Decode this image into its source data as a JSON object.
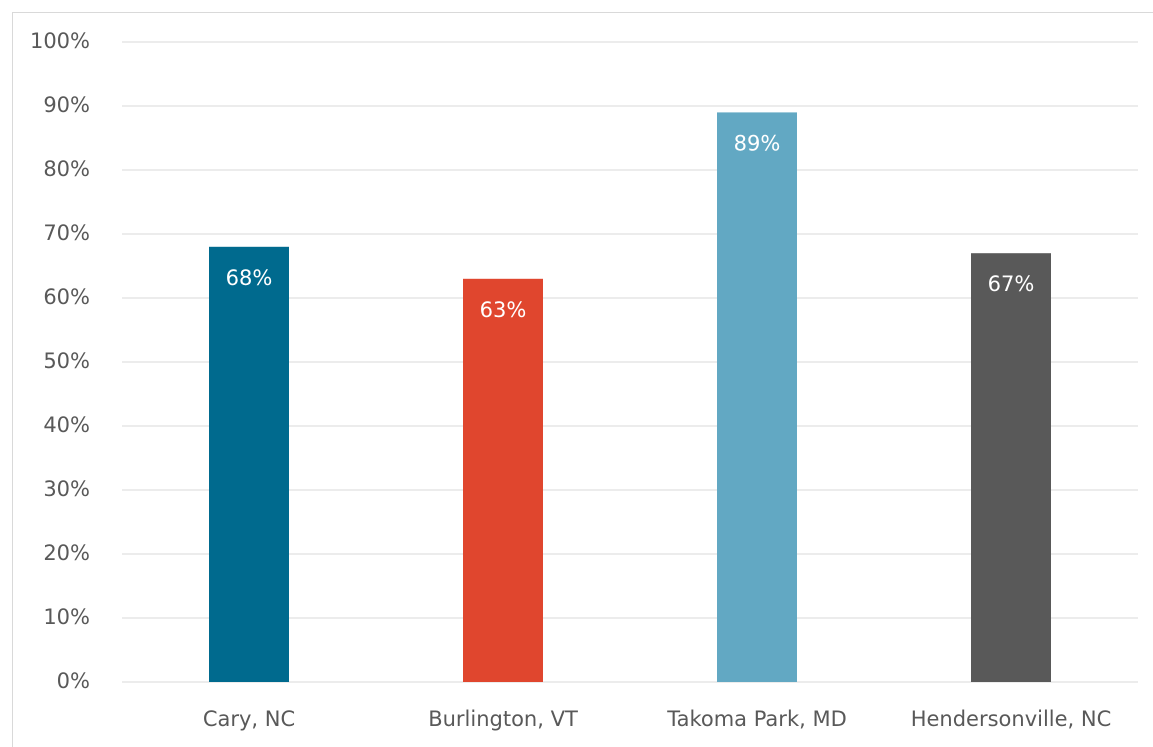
{
  "chart_data": {
    "type": "bar",
    "categories": [
      "Cary, NC",
      "Burlington, VT",
      "Takoma Park, MD",
      "Hendersonville, NC"
    ],
    "values": [
      68,
      63,
      89,
      67
    ],
    "value_labels": [
      "68%",
      "63%",
      "89%",
      "67%"
    ],
    "colors": [
      "#006a8e",
      "#e0462e",
      "#62a8c3",
      "#595959"
    ],
    "ylim": [
      0,
      100
    ],
    "yticks": [
      {
        "value": 0,
        "label": "0%"
      },
      {
        "value": 10,
        "label": "10%"
      },
      {
        "value": 20,
        "label": "20%"
      },
      {
        "value": 30,
        "label": "30%"
      },
      {
        "value": 40,
        "label": "40%"
      },
      {
        "value": 50,
        "label": "50%"
      },
      {
        "value": 60,
        "label": "60%"
      },
      {
        "value": 70,
        "label": "70%"
      },
      {
        "value": 80,
        "label": "80%"
      },
      {
        "value": 90,
        "label": "90%"
      },
      {
        "value": 100,
        "label": "100%"
      }
    ],
    "grid": true
  }
}
